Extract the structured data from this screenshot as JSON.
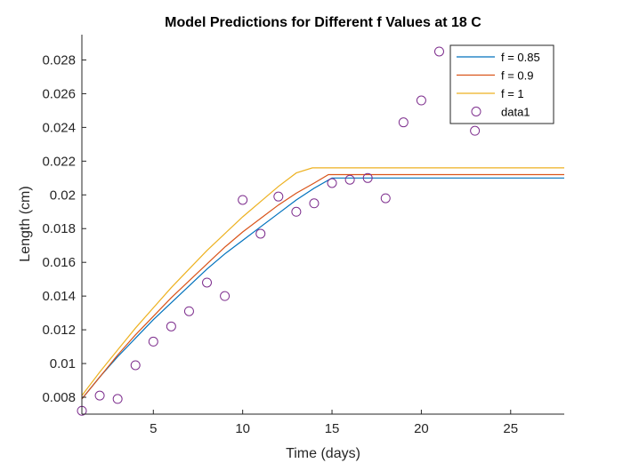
{
  "chart_data": {
    "type": "line",
    "title": "Model Predictions for Different f Values at 18  C",
    "xlabel": "Time (days)",
    "ylabel": "Length (cm)",
    "xlim": [
      1,
      28
    ],
    "ylim": [
      0.007,
      0.0295
    ],
    "xticks": [
      5,
      10,
      15,
      20,
      25
    ],
    "xtick_labels": [
      "5",
      "10",
      "15",
      "20",
      "25"
    ],
    "yticks": [
      0.008,
      0.01,
      0.012,
      0.014,
      0.016,
      0.018,
      0.02,
      0.022,
      0.024,
      0.026,
      0.028
    ],
    "ytick_labels": [
      "0.008",
      "0.01",
      "0.012",
      "0.014",
      "0.016",
      "0.018",
      "0.02",
      "0.022",
      "0.024",
      "0.026",
      "0.028"
    ],
    "grid": false,
    "legend_position": "top-right",
    "series": [
      {
        "name": "f = 0.85",
        "kind": "line",
        "color": "#0072BD",
        "x": [
          1,
          2,
          3,
          4,
          5,
          6,
          7,
          8,
          9,
          10,
          11,
          12,
          13,
          14,
          15,
          16,
          17,
          18,
          19,
          20,
          21,
          22,
          23,
          24,
          25,
          26,
          27,
          28
        ],
        "y": [
          0.0079,
          0.0092,
          0.0104,
          0.0115,
          0.0126,
          0.0136,
          0.0146,
          0.0156,
          0.0165,
          0.0173,
          0.0181,
          0.0189,
          0.0197,
          0.0204,
          0.021,
          0.021,
          0.021,
          0.021,
          0.021,
          0.021,
          0.021,
          0.021,
          0.021,
          0.021,
          0.021,
          0.021,
          0.021,
          0.021
        ]
      },
      {
        "name": "f = 0.9",
        "kind": "line",
        "color": "#D95319",
        "x": [
          1,
          2,
          3,
          4,
          5,
          6,
          7,
          8,
          9,
          10,
          11,
          12,
          13,
          14,
          14.8,
          15,
          16,
          17,
          18,
          19,
          20,
          21,
          22,
          23,
          24,
          25,
          26,
          27,
          28
        ],
        "y": [
          0.0079,
          0.0092,
          0.0105,
          0.0117,
          0.0128,
          0.0139,
          0.0149,
          0.0159,
          0.0169,
          0.0178,
          0.0186,
          0.0194,
          0.0201,
          0.0207,
          0.0212,
          0.0212,
          0.0212,
          0.0212,
          0.0212,
          0.0212,
          0.0212,
          0.0212,
          0.0212,
          0.0212,
          0.0212,
          0.0212,
          0.0212,
          0.0212,
          0.0212
        ]
      },
      {
        "name": "f = 1",
        "kind": "line",
        "color": "#EDB120",
        "x": [
          1,
          2,
          3,
          4,
          5,
          6,
          7,
          8,
          9,
          10,
          11,
          12,
          13,
          13.9,
          15,
          16,
          17,
          18,
          19,
          20,
          21,
          22,
          23,
          24,
          25,
          26,
          27,
          28
        ],
        "y": [
          0.0081,
          0.0095,
          0.0108,
          0.0121,
          0.0133,
          0.0145,
          0.0156,
          0.0167,
          0.0177,
          0.0187,
          0.0196,
          0.0205,
          0.0213,
          0.0216,
          0.0216,
          0.0216,
          0.0216,
          0.0216,
          0.0216,
          0.0216,
          0.0216,
          0.0216,
          0.0216,
          0.0216,
          0.0216,
          0.0216,
          0.0216,
          0.0216
        ]
      },
      {
        "name": "data1",
        "kind": "scatter",
        "color": "#7E2F8E",
        "x": [
          1,
          2,
          3,
          4,
          5,
          6,
          7,
          8,
          9,
          10,
          11,
          12,
          13,
          14,
          15,
          16,
          17,
          18,
          19,
          20,
          21,
          23
        ],
        "y": [
          0.0072,
          0.0081,
          0.0079,
          0.0099,
          0.0113,
          0.0122,
          0.0131,
          0.0148,
          0.014,
          0.0197,
          0.0177,
          0.0199,
          0.019,
          0.0195,
          0.0207,
          0.0209,
          0.021,
          0.0198,
          0.0243,
          0.0256,
          0.0285,
          0.0238
        ]
      }
    ]
  }
}
